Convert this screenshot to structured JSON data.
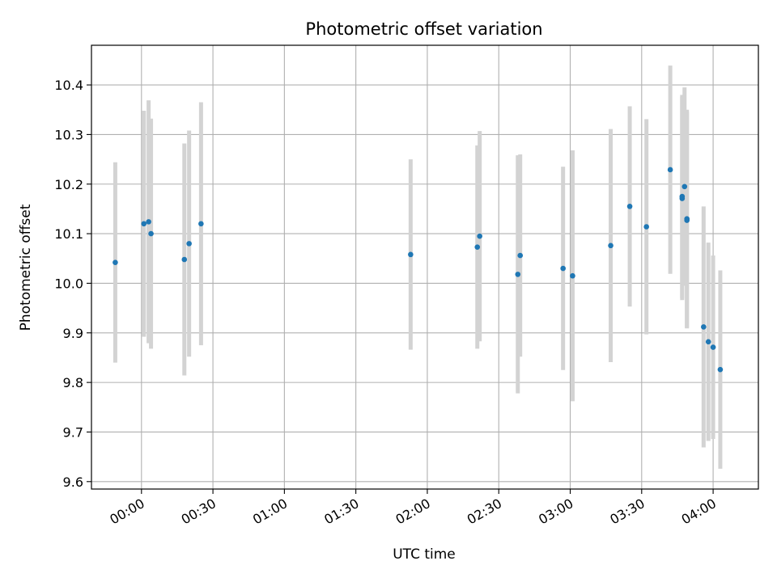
{
  "chart_data": {
    "type": "scatter",
    "title": "Photometric offset variation",
    "xlabel": "UTC time",
    "ylabel": "Photometric offset",
    "x_unit": "UTC time (HH:MM, day-relative; negative = before 00:00)",
    "xlim": [
      "23:39",
      "04:19"
    ],
    "ylim": [
      9.585,
      10.48
    ],
    "grid": true,
    "x_ticks": [
      "00:00",
      "00:30",
      "01:00",
      "01:30",
      "02:00",
      "02:30",
      "03:00",
      "03:30",
      "04:00"
    ],
    "y_ticks": [
      "9.6",
      "9.7",
      "9.8",
      "9.9",
      "10.0",
      "10.1",
      "10.2",
      "10.3",
      "10.4"
    ],
    "series": [
      {
        "marker_color": "#1f77b4",
        "errorbar_color": "#d3d3d3",
        "points": [
          {
            "x": "23:49",
            "y": 10.042,
            "err": 0.202
          },
          {
            "x": "00:01",
            "y": 10.12,
            "err": 0.228
          },
          {
            "x": "00:03",
            "y": 10.124,
            "err": 0.245
          },
          {
            "x": "00:04",
            "y": 10.1,
            "err": 0.232
          },
          {
            "x": "00:18",
            "y": 10.048,
            "err": 0.234
          },
          {
            "x": "00:20",
            "y": 10.08,
            "err": 0.228
          },
          {
            "x": "00:25",
            "y": 10.12,
            "err": 0.245
          },
          {
            "x": "01:53",
            "y": 10.058,
            "err": 0.192
          },
          {
            "x": "02:21",
            "y": 10.073,
            "err": 0.205
          },
          {
            "x": "02:22",
            "y": 10.095,
            "err": 0.212
          },
          {
            "x": "02:38",
            "y": 10.018,
            "err": 0.24
          },
          {
            "x": "02:39",
            "y": 10.056,
            "err": 0.204
          },
          {
            "x": "02:57",
            "y": 10.03,
            "err": 0.205
          },
          {
            "x": "03:01",
            "y": 10.015,
            "err": 0.253
          },
          {
            "x": "03:17",
            "y": 10.076,
            "err": 0.235
          },
          {
            "x": "03:25",
            "y": 10.155,
            "err": 0.202
          },
          {
            "x": "03:32",
            "y": 10.114,
            "err": 0.217
          },
          {
            "x": "03:42",
            "y": 10.229,
            "err": 0.21
          },
          {
            "x": "03:47",
            "y": 10.171,
            "err": 0.205
          },
          {
            "x": "03:47",
            "y": 10.175,
            "err": 0.205
          },
          {
            "x": "03:48",
            "y": 10.195,
            "err": 0.2
          },
          {
            "x": "03:49",
            "y": 10.13,
            "err": 0.22
          },
          {
            "x": "03:49",
            "y": 10.127,
            "err": 0.218
          },
          {
            "x": "03:56",
            "y": 9.912,
            "err": 0.243
          },
          {
            "x": "03:58",
            "y": 9.882,
            "err": 0.2
          },
          {
            "x": "04:00",
            "y": 9.871,
            "err": 0.185
          },
          {
            "x": "04:03",
            "y": 9.826,
            "err": 0.2
          }
        ]
      }
    ]
  }
}
